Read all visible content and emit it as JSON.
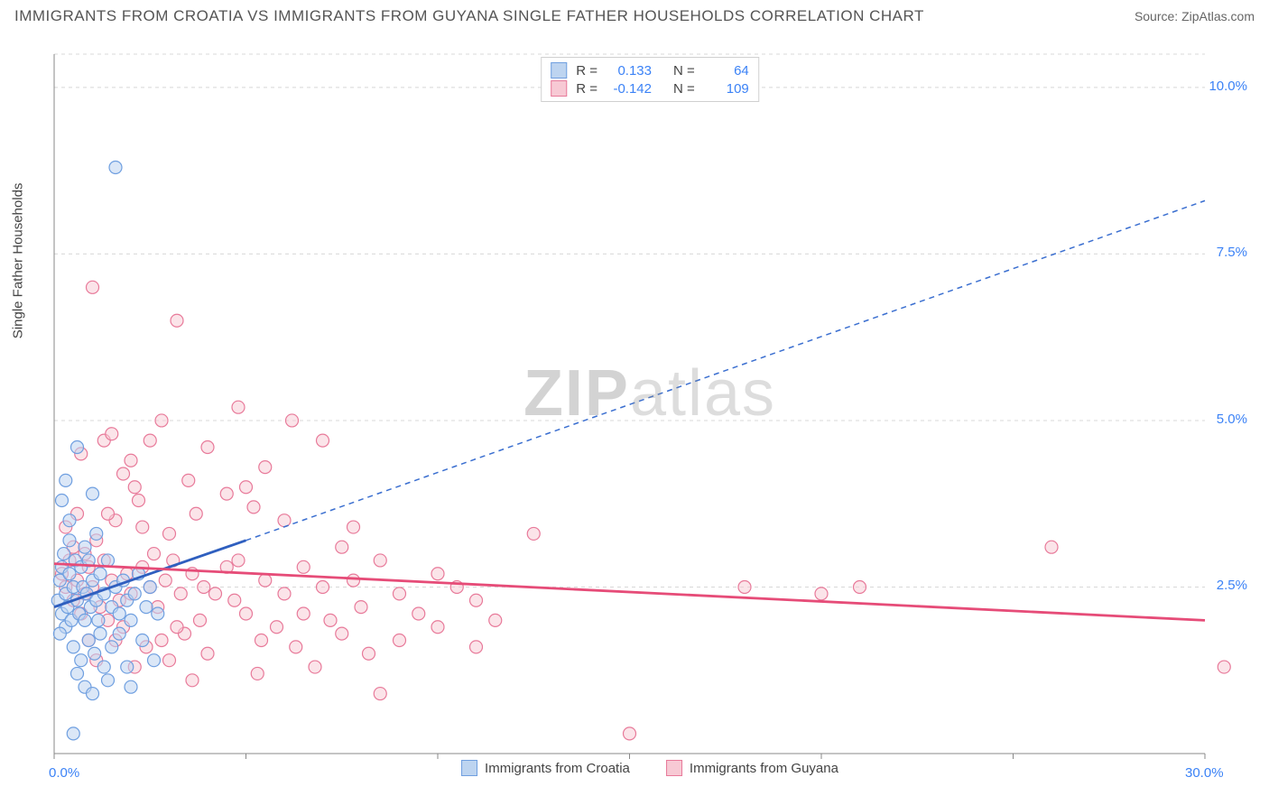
{
  "title": "IMMIGRANTS FROM CROATIA VS IMMIGRANTS FROM GUYANA SINGLE FATHER HOUSEHOLDS CORRELATION CHART",
  "source": "Source: ZipAtlas.com",
  "ylabel": "Single Father Households",
  "watermark_a": "ZIP",
  "watermark_b": "atlas",
  "chart": {
    "type": "scatter",
    "xlim": [
      0,
      30
    ],
    "ylim": [
      0,
      10.5
    ],
    "xtick_vals": [
      0,
      5,
      10,
      15,
      20,
      25,
      30
    ],
    "ytick_vals": [
      2.5,
      5.0,
      7.5,
      10.0
    ],
    "xtick_labels_shown": {
      "0": "0.0%",
      "30": "30.0%"
    },
    "ytick_labels": [
      "2.5%",
      "5.0%",
      "7.5%",
      "10.0%"
    ],
    "grid_color": "#d8d8d8",
    "axis_color": "#888888",
    "background_color": "#ffffff",
    "marker_radius": 7,
    "marker_stroke_width": 1.2,
    "trend_line_width": 2.8
  },
  "series": [
    {
      "name": "Immigrants from Croatia",
      "fill": "#bdd4f0",
      "stroke": "#6f9fe0",
      "fill_opacity": 0.55,
      "r": 0.133,
      "n": 64,
      "trend": {
        "x1": 0,
        "y1": 2.2,
        "x2": 5.0,
        "y2": 3.2,
        "color": "#2f5fbf",
        "dash": "none"
      },
      "trend_ext": {
        "x1": 5.0,
        "y1": 3.2,
        "x2": 30,
        "y2": 8.3,
        "color": "#3b6fd0",
        "dash": "6,5"
      },
      "points": [
        [
          0.1,
          2.3
        ],
        [
          0.15,
          2.6
        ],
        [
          0.2,
          2.1
        ],
        [
          0.2,
          2.8
        ],
        [
          0.25,
          3.0
        ],
        [
          0.3,
          2.4
        ],
        [
          0.3,
          1.9
        ],
        [
          0.35,
          2.2
        ],
        [
          0.4,
          2.7
        ],
        [
          0.4,
          3.5
        ],
        [
          0.45,
          2.0
        ],
        [
          0.5,
          2.5
        ],
        [
          0.5,
          1.6
        ],
        [
          0.55,
          2.9
        ],
        [
          0.6,
          2.3
        ],
        [
          0.6,
          4.6
        ],
        [
          0.65,
          2.1
        ],
        [
          0.7,
          2.8
        ],
        [
          0.7,
          1.4
        ],
        [
          0.75,
          2.5
        ],
        [
          0.8,
          3.1
        ],
        [
          0.8,
          2.0
        ],
        [
          0.85,
          2.4
        ],
        [
          0.9,
          1.7
        ],
        [
          0.9,
          2.9
        ],
        [
          0.95,
          2.2
        ],
        [
          1.0,
          3.9
        ],
        [
          1.0,
          2.6
        ],
        [
          1.05,
          1.5
        ],
        [
          1.1,
          2.3
        ],
        [
          1.1,
          3.3
        ],
        [
          1.15,
          2.0
        ],
        [
          1.2,
          2.7
        ],
        [
          1.3,
          1.3
        ],
        [
          1.3,
          2.4
        ],
        [
          1.4,
          1.1
        ],
        [
          1.4,
          2.9
        ],
        [
          1.5,
          2.2
        ],
        [
          1.5,
          1.6
        ],
        [
          1.6,
          2.5
        ],
        [
          1.7,
          1.8
        ],
        [
          1.7,
          2.1
        ],
        [
          1.8,
          2.6
        ],
        [
          1.9,
          1.3
        ],
        [
          1.9,
          2.3
        ],
        [
          2.0,
          2.0
        ],
        [
          2.0,
          1.0
        ],
        [
          2.1,
          2.4
        ],
        [
          2.2,
          2.7
        ],
        [
          2.3,
          1.7
        ],
        [
          2.4,
          2.2
        ],
        [
          2.5,
          2.5
        ],
        [
          2.6,
          1.4
        ],
        [
          2.7,
          2.1
        ],
        [
          1.2,
          1.8
        ],
        [
          0.8,
          1.0
        ],
        [
          0.6,
          1.2
        ],
        [
          0.3,
          4.1
        ],
        [
          0.2,
          3.8
        ],
        [
          0.15,
          1.8
        ],
        [
          1.6,
          8.8
        ],
        [
          0.5,
          0.3
        ],
        [
          1.0,
          0.9
        ],
        [
          0.4,
          3.2
        ]
      ]
    },
    {
      "name": "Immigrants from Guyana",
      "fill": "#f7c9d4",
      "stroke": "#e87a9a",
      "fill_opacity": 0.5,
      "r": -0.142,
      "n": 109,
      "trend": {
        "x1": 0,
        "y1": 2.85,
        "x2": 30,
        "y2": 2.0,
        "color": "#e64c78",
        "dash": "none"
      },
      "points": [
        [
          0.2,
          2.7
        ],
        [
          0.3,
          2.5
        ],
        [
          0.4,
          2.9
        ],
        [
          0.5,
          3.1
        ],
        [
          0.5,
          2.3
        ],
        [
          0.6,
          2.6
        ],
        [
          0.7,
          4.5
        ],
        [
          0.8,
          2.4
        ],
        [
          0.8,
          3.0
        ],
        [
          0.9,
          2.8
        ],
        [
          1.0,
          7.0
        ],
        [
          1.0,
          2.5
        ],
        [
          1.1,
          3.2
        ],
        [
          1.2,
          2.2
        ],
        [
          1.3,
          4.7
        ],
        [
          1.3,
          2.9
        ],
        [
          1.4,
          2.0
        ],
        [
          1.5,
          4.8
        ],
        [
          1.5,
          2.6
        ],
        [
          1.6,
          3.5
        ],
        [
          1.7,
          2.3
        ],
        [
          1.8,
          4.2
        ],
        [
          1.8,
          1.9
        ],
        [
          1.9,
          2.7
        ],
        [
          2.0,
          4.4
        ],
        [
          2.0,
          2.4
        ],
        [
          2.1,
          4.0
        ],
        [
          2.2,
          3.8
        ],
        [
          2.3,
          2.8
        ],
        [
          2.4,
          1.6
        ],
        [
          2.5,
          2.5
        ],
        [
          2.5,
          4.7
        ],
        [
          2.6,
          3.0
        ],
        [
          2.7,
          2.2
        ],
        [
          2.8,
          5.0
        ],
        [
          2.9,
          2.6
        ],
        [
          3.0,
          1.4
        ],
        [
          3.0,
          3.3
        ],
        [
          3.1,
          2.9
        ],
        [
          3.2,
          6.5
        ],
        [
          3.3,
          2.4
        ],
        [
          3.4,
          1.8
        ],
        [
          3.5,
          4.1
        ],
        [
          3.6,
          2.7
        ],
        [
          3.7,
          3.6
        ],
        [
          3.8,
          2.0
        ],
        [
          3.9,
          2.5
        ],
        [
          4.0,
          4.6
        ],
        [
          4.0,
          1.5
        ],
        [
          4.5,
          2.8
        ],
        [
          4.5,
          3.9
        ],
        [
          4.7,
          2.3
        ],
        [
          4.8,
          5.2
        ],
        [
          5.0,
          4.0
        ],
        [
          5.0,
          2.1
        ],
        [
          5.2,
          3.7
        ],
        [
          5.3,
          1.2
        ],
        [
          5.5,
          2.6
        ],
        [
          5.5,
          4.3
        ],
        [
          5.8,
          1.9
        ],
        [
          6.0,
          2.4
        ],
        [
          6.0,
          3.5
        ],
        [
          6.2,
          5.0
        ],
        [
          6.3,
          1.6
        ],
        [
          6.5,
          2.8
        ],
        [
          6.8,
          1.3
        ],
        [
          7.0,
          2.5
        ],
        [
          7.0,
          4.7
        ],
        [
          7.2,
          2.0
        ],
        [
          7.5,
          3.1
        ],
        [
          7.5,
          1.8
        ],
        [
          7.8,
          2.6
        ],
        [
          8.0,
          2.2
        ],
        [
          8.2,
          1.5
        ],
        [
          8.5,
          2.9
        ],
        [
          8.5,
          0.9
        ],
        [
          9.0,
          2.4
        ],
        [
          9.0,
          1.7
        ],
        [
          9.5,
          2.1
        ],
        [
          10.0,
          2.7
        ],
        [
          10.0,
          1.9
        ],
        [
          10.5,
          2.5
        ],
        [
          11.0,
          1.6
        ],
        [
          11.0,
          2.3
        ],
        [
          11.5,
          2.0
        ],
        [
          12.5,
          3.3
        ],
        [
          15.0,
          0.3
        ],
        [
          18.0,
          2.5
        ],
        [
          20.0,
          2.4
        ],
        [
          21.0,
          2.5
        ],
        [
          26.0,
          3.1
        ],
        [
          30.5,
          1.3
        ],
        [
          0.3,
          3.4
        ],
        [
          0.6,
          3.6
        ],
        [
          0.9,
          1.7
        ],
        [
          1.1,
          1.4
        ],
        [
          1.6,
          1.7
        ],
        [
          2.1,
          1.3
        ],
        [
          2.8,
          1.7
        ],
        [
          3.2,
          1.9
        ],
        [
          3.6,
          1.1
        ],
        [
          4.2,
          2.4
        ],
        [
          4.8,
          2.9
        ],
        [
          5.4,
          1.7
        ],
        [
          6.5,
          2.1
        ],
        [
          7.8,
          3.4
        ],
        [
          1.4,
          3.6
        ],
        [
          2.3,
          3.4
        ],
        [
          0.7,
          2.1
        ]
      ]
    }
  ],
  "bottom_legend": [
    {
      "label": "Immigrants from Croatia",
      "fill": "#bdd4f0",
      "stroke": "#6f9fe0"
    },
    {
      "label": "Immigrants from Guyana",
      "fill": "#f7c9d4",
      "stroke": "#e87a9a"
    }
  ],
  "top_legend_labels": {
    "r": "R =",
    "n": "N ="
  }
}
